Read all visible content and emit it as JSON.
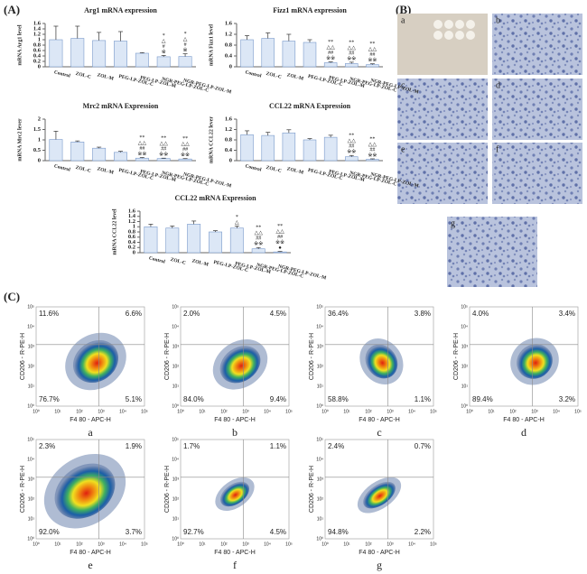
{
  "panel_labels": [
    "(A)",
    "(B)",
    "(C)"
  ],
  "chart_data": [
    {
      "type": "bar",
      "title": "Arg1 mRNA expression",
      "ylabel": "mRNA Arg1 level",
      "categories": [
        "Control",
        "ZOL-C",
        "ZOL-M",
        "PEG-LP-ZOL-C",
        "PEG-LP-ZOL-M",
        "NGR-PEG-LP-ZOL-C",
        "NGR-PEG-LP-ZOL-M"
      ],
      "values": [
        1.0,
        1.05,
        0.97,
        0.95,
        0.5,
        0.37,
        0.38
      ],
      "errors": [
        0.5,
        0.45,
        0.3,
        0.35,
        0.02,
        0.05,
        0.1
      ],
      "annotations": [
        [],
        [],
        [],
        [],
        [],
        [
          "*",
          "△",
          "#",
          "※"
        ],
        [
          "*",
          "△",
          "#",
          "※"
        ]
      ],
      "color": "#dce7f6",
      "ylim": [
        0,
        1.6
      ],
      "yticks": [
        0,
        0.2,
        0.4,
        0.6,
        0.8,
        1,
        1.2,
        1.4,
        1.6
      ]
    },
    {
      "type": "bar",
      "title": "Fizz1 mRNA expression",
      "ylabel": "mRNA Fizz1 level",
      "categories": [
        "Control",
        "ZOL-C",
        "ZOL-M",
        "PEG-LP-ZOL-C",
        "PEG-LP-ZOL-M",
        "NGR-PEG-LP-ZOL-C",
        "NGR-PEG-LP-ZOL-M"
      ],
      "values": [
        1.0,
        1.05,
        0.95,
        0.9,
        0.15,
        0.12,
        0.08
      ],
      "errors": [
        0.15,
        0.2,
        0.25,
        0.1,
        0.03,
        0.05,
        0.03
      ],
      "annotations": [
        [],
        [],
        [],
        [],
        [
          "**",
          "△△",
          "##",
          "※※"
        ],
        [
          "**",
          "△△",
          "##",
          "※※"
        ],
        [
          "**",
          "△△",
          "##",
          "※※"
        ]
      ],
      "color": "#dce7f6",
      "ylim": [
        0,
        1.6
      ],
      "yticks": [
        0,
        0.4,
        0.8,
        1.2,
        1.6
      ]
    },
    {
      "type": "bar",
      "title": "Mrc2 mRNA Expression",
      "ylabel": "mRNA Mrc2 lever",
      "categories": [
        "Control",
        "ZOL-C",
        "ZOL-M",
        "PEG-LP-ZOL-C",
        "PEG-LP-ZOL-M",
        "NGR-PEG-LP-ZOL-C",
        "NGR-PEG-LP-ZOL-M"
      ],
      "values": [
        1.02,
        0.9,
        0.6,
        0.4,
        0.12,
        0.1,
        0.08
      ],
      "errors": [
        0.4,
        0.05,
        0.05,
        0.05,
        0.03,
        0.02,
        0.02
      ],
      "annotations": [
        [],
        [],
        [],
        [],
        [
          "**",
          "△△",
          "##",
          "※※"
        ],
        [
          "**",
          "△△",
          "##",
          "※※"
        ],
        [
          "**",
          "△△",
          "##",
          "※※"
        ]
      ],
      "color": "#dce7f6",
      "ylim": [
        0,
        2
      ],
      "yticks": [
        0,
        0.5,
        1,
        1.5,
        2
      ]
    },
    {
      "type": "bar",
      "title": "CCL22 mRNA Expression",
      "ylabel": "mRNA CCL22 lever",
      "categories": [
        "Control",
        "ZOL-C",
        "ZOL-M",
        "PEG-LP-ZOL-C",
        "PEG-LP-ZOL-M",
        "NGR-PEG-LP-ZOL-C",
        "NGR-PEG-LP-ZOL-M"
      ],
      "values": [
        1.0,
        0.97,
        1.07,
        0.8,
        0.9,
        0.15,
        0.05
      ],
      "errors": [
        0.15,
        0.12,
        0.12,
        0.05,
        0.08,
        0.05,
        0.02
      ],
      "annotations": [
        [],
        [],
        [],
        [],
        [],
        [
          "**",
          "△△",
          "##",
          "※※"
        ],
        [
          "**",
          "△△",
          "##",
          "※※"
        ]
      ],
      "color": "#dce7f6",
      "ylim": [
        0,
        1.6
      ],
      "yticks": [
        0,
        0.4,
        0.8,
        1.2,
        1.6
      ]
    },
    {
      "type": "bar",
      "title": "CCL22 mRNA Expression",
      "ylabel": "mRNA CCL22 level",
      "categories": [
        "Control",
        "ZOL-C",
        "ZOL-M",
        "PEG-LP-ZOL-C",
        "PEG-LP-ZOL-M",
        "NGR-PEG-LP-ZOL-C",
        "NGR-PEG-LP-ZOL-M"
      ],
      "values": [
        1.0,
        0.95,
        1.1,
        0.8,
        0.95,
        0.15,
        0.03
      ],
      "errors": [
        0.1,
        0.08,
        0.12,
        0.05,
        0.08,
        0.05,
        0.02
      ],
      "annotations": [
        [],
        [],
        [],
        [],
        [
          "*",
          "△"
        ],
        [
          "**",
          "△△",
          "##",
          "※※"
        ],
        [
          "**",
          "△△",
          "##",
          "※※",
          "●"
        ]
      ],
      "color": "#dce7f6",
      "ylim": [
        0,
        1.6
      ],
      "yticks": [
        0,
        0.2,
        0.4,
        0.6,
        0.8,
        1,
        1.2,
        1.4,
        1.6
      ]
    }
  ],
  "histology": {
    "labels": [
      "a",
      "b",
      "c",
      "d",
      "e",
      "f",
      "g"
    ]
  },
  "flow": {
    "xlabel": "F4 80 - APC-H",
    "xtick_labels": [
      "10⁰",
      "10¹",
      "10²",
      "10³",
      "10⁴",
      "10⁵"
    ],
    "panels": [
      {
        "label": "a",
        "ylabel": "CD206 - R-PE-H",
        "quadrants": [
          "11.6%",
          "6.6%",
          "76.7%",
          "5.1%"
        ]
      },
      {
        "label": "b",
        "ylabel": "CD206 - R-PE-H",
        "quadrants": [
          "2.0%",
          "4.5%",
          "84.0%",
          "9.4%"
        ]
      },
      {
        "label": "c",
        "ylabel": "CD206 - R-PE-H",
        "quadrants": [
          "36.4%",
          "3.8%",
          "58.8%",
          "1.1%"
        ]
      },
      {
        "label": "d",
        "ylabel": "CD206 - R-PE-H",
        "quadrants": [
          "4.0%",
          "3.4%",
          "89.4%",
          "3.2%"
        ]
      },
      {
        "label": "e",
        "ylabel": "CD206 - R-PE-H",
        "quadrants": [
          "2.3%",
          "1.9%",
          "92.0%",
          "3.7%"
        ]
      },
      {
        "label": "f",
        "ylabel": "CD206 - R-PE-H",
        "quadrants": [
          "1.7%",
          "1.1%",
          "92.7%",
          "4.5%"
        ]
      },
      {
        "label": "g",
        "ylabel": "CD206 - R-PE-H",
        "quadrants": [
          "2.4%",
          "0.7%",
          "94.8%",
          "2.2%"
        ]
      }
    ]
  }
}
